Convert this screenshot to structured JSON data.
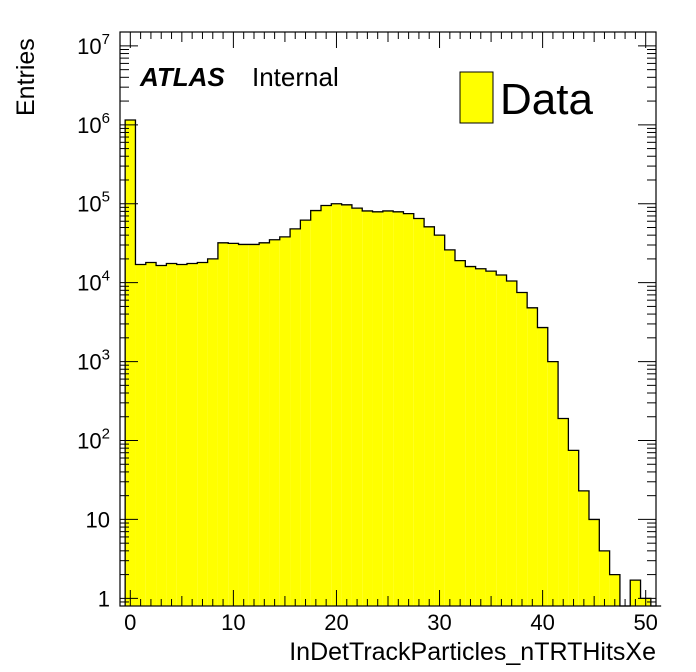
{
  "chart_data": {
    "type": "bar",
    "title": "",
    "xlabel": "InDetTrackParticles_nTRTHitsXe",
    "ylabel": "Entries",
    "xlim": [
      -1,
      51
    ],
    "ylim": [
      0.8,
      15000000
    ],
    "yscale": "log",
    "grid": false,
    "fill_color": "#ffff00",
    "line_color": "#000000",
    "legend": {
      "position": "top-right",
      "entries": [
        "Data"
      ]
    },
    "annotation": {
      "bold": "ATLAS",
      "text": "Internal"
    },
    "x_ticks": [
      0,
      10,
      20,
      30,
      40,
      50
    ],
    "y_ticks": [
      {
        "value": 1,
        "base": "1",
        "exp": ""
      },
      {
        "value": 10,
        "base": "10",
        "exp": ""
      },
      {
        "value": 100,
        "base": "10",
        "exp": "2"
      },
      {
        "value": 1000,
        "base": "10",
        "exp": "3"
      },
      {
        "value": 10000,
        "base": "10",
        "exp": "4"
      },
      {
        "value": 100000,
        "base": "10",
        "exp": "5"
      },
      {
        "value": 1000000,
        "base": "10",
        "exp": "6"
      },
      {
        "value": 10000000,
        "base": "10",
        "exp": "7"
      }
    ],
    "bin_edges_start": -0.5,
    "bin_width": 1,
    "values": [
      1150000,
      17000,
      18000,
      16500,
      17500,
      17000,
      17500,
      18000,
      20000,
      32000,
      31500,
      30500,
      30500,
      32000,
      35000,
      38000,
      48000,
      62000,
      82000,
      95000,
      100000,
      97000,
      88000,
      81000,
      79000,
      81000,
      79000,
      75000,
      65000,
      51000,
      40000,
      26000,
      19000,
      16000,
      15000,
      14000,
      12500,
      10500,
      7500,
      4800,
      2700,
      1000,
      190,
      75,
      23,
      10,
      4,
      2,
      0,
      1.7,
      1,
      0
    ]
  }
}
